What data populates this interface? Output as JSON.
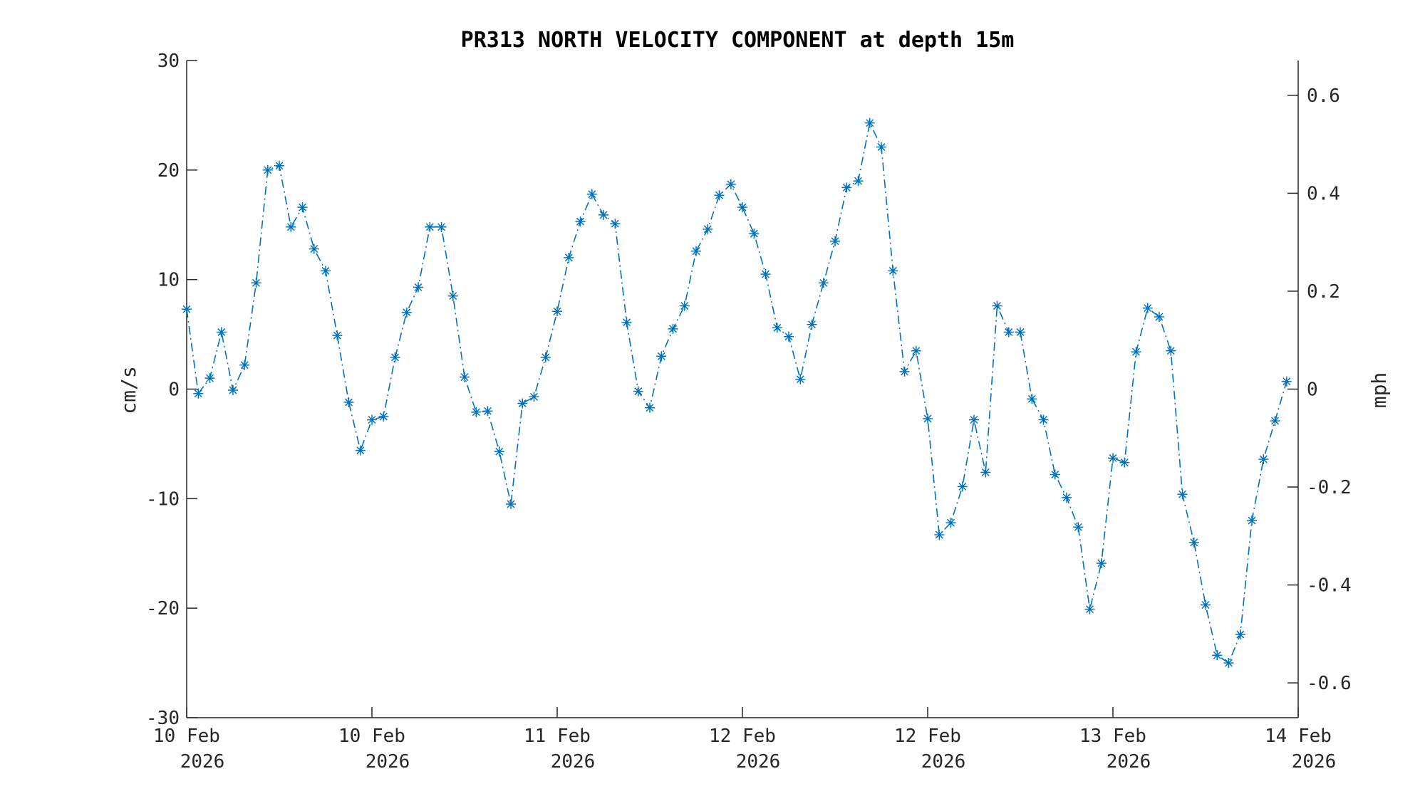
{
  "chart_data": {
    "type": "line",
    "title": "PR313 NORTH VELOCITY COMPONENT at depth 15m",
    "ylabel": "cm/s",
    "ylabel_right": "mph",
    "ylim": [
      -30,
      30
    ],
    "xlim": [
      0,
      96
    ],
    "y_ticks": [
      "30",
      "20",
      "10",
      "0",
      "-10",
      "-20",
      "-30"
    ],
    "y_tick_values": [
      30,
      20,
      10,
      0,
      -10,
      -20,
      -30
    ],
    "y2_ticks": [
      "0.6",
      "0.4",
      "0.2",
      "0",
      "-0.2",
      "-0.4",
      "-0.6"
    ],
    "y2_tick_values": [
      0.6,
      0.4,
      0.2,
      0,
      -0.2,
      -0.4,
      -0.6
    ],
    "x_ticks": [
      {
        "value": 0,
        "line1": "10 Feb",
        "line2": "2026"
      },
      {
        "value": 16,
        "line1": "10 Feb",
        "line2": "2026"
      },
      {
        "value": 32,
        "line1": "11 Feb",
        "line2": "2026"
      },
      {
        "value": 48,
        "line1": "12 Feb",
        "line2": "2026"
      },
      {
        "value": 64,
        "line1": "12 Feb",
        "line2": "2026"
      },
      {
        "value": 80,
        "line1": "13 Feb",
        "line2": "2026"
      },
      {
        "value": 96,
        "line1": "14 Feb",
        "line2": "2026"
      }
    ],
    "grid": false,
    "line_color": "#0072bd",
    "line_style": "dash-dot",
    "marker": "asterisk",
    "series": [
      {
        "x_step": 1,
        "values": [
          7.3,
          -0.4,
          1.0,
          5.2,
          -0.1,
          2.2,
          9.7,
          20.0,
          20.4,
          14.8,
          16.6,
          12.8,
          10.8,
          4.9,
          -1.2,
          -5.6,
          -2.8,
          -2.5,
          2.9,
          7.0,
          9.3,
          14.8,
          14.8,
          8.5,
          1.1,
          -2.1,
          -2.0,
          -5.7,
          -10.5,
          -1.3,
          -0.7,
          2.9,
          7.1,
          12.0,
          15.3,
          17.8,
          15.9,
          15.1,
          6.1,
          -0.2,
          -1.7,
          3.0,
          5.5,
          7.6,
          12.6,
          14.6,
          17.7,
          18.7,
          16.6,
          14.2,
          10.5,
          5.6,
          4.8,
          0.9,
          5.9,
          9.7,
          13.5,
          18.4,
          19.0,
          24.3,
          22.1,
          10.8,
          1.6,
          3.5,
          -2.7,
          -13.3,
          -12.2,
          -8.9,
          -2.8,
          -7.6,
          7.6,
          5.2,
          5.2,
          -0.9,
          -2.8,
          -7.8,
          -9.9,
          -12.6,
          -20.1,
          -15.9,
          -6.3,
          -6.7,
          3.4,
          7.4,
          6.6,
          3.5,
          -9.6,
          -14.0,
          -19.7,
          -24.3,
          -25.0,
          -22.4,
          -12.0,
          -6.4,
          -2.9,
          0.7
        ]
      }
    ]
  }
}
